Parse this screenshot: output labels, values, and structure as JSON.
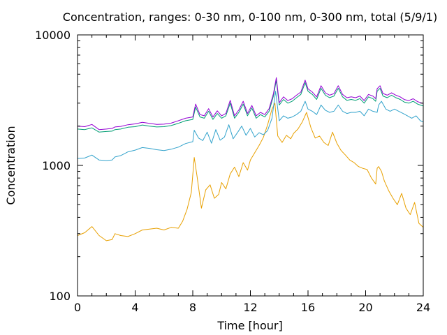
{
  "chart_data": {
    "type": "line",
    "title": "Concentration, ranges: 0-30 nm, 0-100 nm, 0-300 nm, total (5/9/1)",
    "xlabel": "Time [hour]",
    "ylabel": "Concentration",
    "xlim": [
      0,
      24
    ],
    "ylim": [
      100,
      10000
    ],
    "y_scale": "log",
    "grid": false,
    "legend": "none",
    "x_ticks": [
      0,
      4,
      8,
      12,
      16,
      20,
      24
    ],
    "x_tick_labels": [
      "0",
      "4",
      "8",
      "12",
      "16",
      "20",
      "24"
    ],
    "y_ticks": [
      100,
      1000,
      10000
    ],
    "y_tick_labels": [
      "100",
      "1000",
      "10000"
    ],
    "series": [
      {
        "color": "#e8a000",
        "x": [
          0,
          0.5,
          1,
          1.5,
          2,
          2.4,
          2.6,
          3,
          3.5,
          4,
          4.5,
          5,
          5.5,
          6,
          6.5,
          7,
          7.3,
          7.6,
          7.9,
          8.1,
          8.3,
          8.6,
          8.9,
          9.2,
          9.5,
          9.8,
          10,
          10.3,
          10.6,
          10.9,
          11.2,
          11.5,
          11.8,
          12,
          12.3,
          12.6,
          12.9,
          13.2,
          13.5,
          13.7,
          13.9,
          14.2,
          14.5,
          14.8,
          15,
          15.3,
          15.6,
          15.9,
          16.2,
          16.5,
          16.8,
          17.1,
          17.4,
          17.7,
          18,
          18.3,
          18.6,
          18.9,
          19.2,
          19.5,
          19.8,
          20.1,
          20.4,
          20.7,
          20.8,
          20.9,
          21.1,
          21.3,
          21.6,
          21.9,
          22.2,
          22.5,
          22.8,
          23.1,
          23.4,
          23.7,
          24
        ],
        "y": [
          290,
          305,
          340,
          290,
          265,
          270,
          300,
          290,
          285,
          300,
          320,
          325,
          330,
          320,
          335,
          330,
          375,
          460,
          620,
          1150,
          820,
          470,
          650,
          710,
          560,
          600,
          740,
          660,
          860,
          970,
          820,
          1050,
          920,
          1100,
          1250,
          1420,
          1640,
          2050,
          2700,
          3000,
          1680,
          1500,
          1700,
          1600,
          1760,
          1900,
          2150,
          2550,
          1950,
          1620,
          1680,
          1500,
          1420,
          1800,
          1480,
          1300,
          1200,
          1100,
          1050,
          980,
          950,
          930,
          800,
          720,
          950,
          980,
          900,
          760,
          640,
          560,
          500,
          610,
          470,
          420,
          520,
          360,
          335
        ]
      },
      {
        "color": "#33a3cc",
        "x": [
          0,
          0.5,
          1,
          1.5,
          2,
          2.4,
          2.6,
          3,
          3.5,
          4,
          4.5,
          5,
          5.5,
          6,
          6.5,
          7,
          7.5,
          8,
          8.1,
          8.4,
          8.7,
          9,
          9.3,
          9.6,
          9.9,
          10.2,
          10.5,
          10.8,
          11.1,
          11.4,
          11.7,
          12,
          12.3,
          12.6,
          12.9,
          13.2,
          13.5,
          13.75,
          14,
          14.3,
          14.6,
          14.9,
          15.2,
          15.5,
          15.8,
          16,
          16.3,
          16.6,
          16.9,
          17.2,
          17.5,
          17.8,
          18.1,
          18.4,
          18.7,
          19,
          19.3,
          19.6,
          19.9,
          20.2,
          20.5,
          20.8,
          20.9,
          21.1,
          21.4,
          21.7,
          22,
          22.3,
          22.6,
          22.9,
          23.2,
          23.5,
          23.8,
          24
        ],
        "y": [
          1130,
          1140,
          1200,
          1100,
          1090,
          1100,
          1160,
          1190,
          1270,
          1310,
          1370,
          1350,
          1320,
          1300,
          1330,
          1380,
          1470,
          1520,
          1860,
          1620,
          1550,
          1800,
          1480,
          1880,
          1560,
          1650,
          2050,
          1600,
          1780,
          2000,
          1700,
          1920,
          1650,
          1780,
          1720,
          1850,
          2300,
          3700,
          2200,
          2400,
          2300,
          2350,
          2450,
          2600,
          3100,
          2700,
          2600,
          2450,
          2900,
          2650,
          2550,
          2600,
          2900,
          2600,
          2500,
          2550,
          2550,
          2600,
          2400,
          2700,
          2600,
          2550,
          2900,
          3100,
          2700,
          2600,
          2700,
          2600,
          2500,
          2400,
          2300,
          2400,
          2200,
          2150
        ]
      },
      {
        "color": "#009e73",
        "x": [
          0,
          0.5,
          1,
          1.5,
          2,
          2.4,
          2.6,
          3,
          3.5,
          4,
          4.5,
          5,
          5.5,
          6,
          6.5,
          7,
          7.5,
          8,
          8.2,
          8.5,
          8.8,
          9.1,
          9.4,
          9.7,
          10,
          10.3,
          10.6,
          10.9,
          11.2,
          11.5,
          11.8,
          12.1,
          12.4,
          12.7,
          13,
          13.3,
          13.6,
          13.8,
          14,
          14.3,
          14.6,
          14.9,
          15.2,
          15.5,
          15.8,
          16,
          16.3,
          16.6,
          16.9,
          17.2,
          17.5,
          17.8,
          18.1,
          18.4,
          18.7,
          19,
          19.3,
          19.6,
          19.9,
          20.2,
          20.5,
          20.7,
          20.8,
          21,
          21.2,
          21.5,
          21.8,
          22.1,
          22.4,
          22.7,
          23,
          23.3,
          23.6,
          24
        ],
        "y": [
          1900,
          1880,
          1940,
          1800,
          1820,
          1830,
          1880,
          1900,
          1960,
          1980,
          2040,
          2000,
          1970,
          1980,
          2020,
          2100,
          2200,
          2250,
          2800,
          2350,
          2300,
          2600,
          2250,
          2500,
          2300,
          2400,
          3000,
          2300,
          2550,
          2950,
          2400,
          2750,
          2300,
          2450,
          2350,
          2600,
          3400,
          4500,
          2900,
          3200,
          3000,
          3100,
          3300,
          3500,
          4300,
          3700,
          3500,
          3200,
          3900,
          3450,
          3300,
          3400,
          3900,
          3350,
          3150,
          3200,
          3150,
          3250,
          3000,
          3350,
          3250,
          3100,
          3700,
          3900,
          3400,
          3300,
          3450,
          3300,
          3200,
          3050,
          3000,
          3100,
          2950,
          2850
        ]
      },
      {
        "color": "#9400d3",
        "x": [
          0,
          0.5,
          1,
          1.5,
          2,
          2.4,
          2.6,
          3,
          3.5,
          4,
          4.5,
          5,
          5.5,
          6,
          6.5,
          7,
          7.5,
          8,
          8.2,
          8.5,
          8.8,
          9.1,
          9.4,
          9.7,
          10,
          10.3,
          10.6,
          10.9,
          11.2,
          11.5,
          11.8,
          12.1,
          12.4,
          12.7,
          13,
          13.3,
          13.6,
          13.8,
          14,
          14.3,
          14.6,
          14.9,
          15.2,
          15.5,
          15.8,
          16,
          16.3,
          16.6,
          16.9,
          17.2,
          17.5,
          17.8,
          18.1,
          18.4,
          18.7,
          19,
          19.3,
          19.6,
          19.9,
          20.2,
          20.5,
          20.7,
          20.8,
          21,
          21.2,
          21.5,
          21.8,
          22.1,
          22.4,
          22.7,
          23,
          23.3,
          23.6,
          24
        ],
        "y": [
          2000,
          1980,
          2060,
          1880,
          1900,
          1920,
          1970,
          1990,
          2050,
          2080,
          2140,
          2100,
          2060,
          2070,
          2110,
          2200,
          2300,
          2350,
          2950,
          2450,
          2400,
          2720,
          2350,
          2620,
          2400,
          2500,
          3150,
          2400,
          2660,
          3100,
          2500,
          2880,
          2400,
          2550,
          2450,
          2720,
          3550,
          4700,
          3020,
          3350,
          3140,
          3240,
          3450,
          3650,
          4500,
          3860,
          3650,
          3350,
          4080,
          3600,
          3450,
          3550,
          4080,
          3500,
          3300,
          3350,
          3300,
          3400,
          3140,
          3500,
          3400,
          3250,
          3870,
          4080,
          3560,
          3450,
          3600,
          3450,
          3350,
          3190,
          3140,
          3240,
          3080,
          2980
        ]
      }
    ]
  }
}
